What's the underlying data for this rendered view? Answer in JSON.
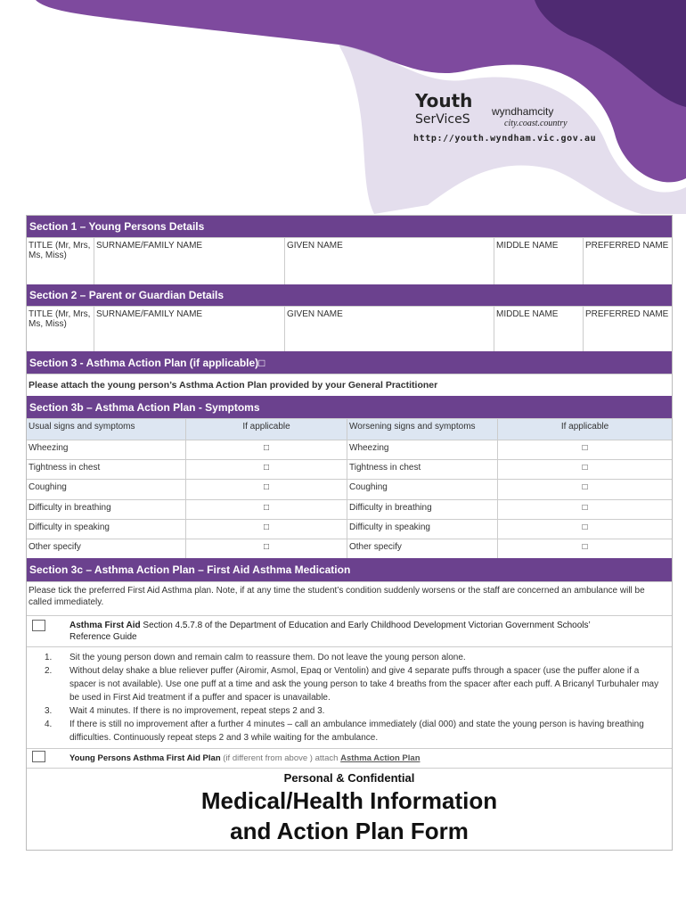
{
  "header": {
    "logo_youth": "Youth",
    "logo_services": "SerViceS",
    "logo_city": "wyndhamcity",
    "logo_tagline": "city.coast.country",
    "url": "http://youth.wyndham.vic.gov.au",
    "accent": "#6b418e"
  },
  "section1": {
    "title": "Section 1 – Young Persons Details",
    "fields": [
      "TITLE (Mr, Mrs, Ms, Miss)",
      "SURNAME/FAMILY NAME",
      "GIVEN NAME",
      "MIDDLE NAME",
      "PREFERRED NAME"
    ]
  },
  "section2": {
    "title": "Section 2 – Parent or Guardian Details",
    "fields": [
      " TITLE (Mr, Mrs, Ms, Miss)",
      "SURNAME/FAMILY NAME",
      "GIVEN NAME",
      "MIDDLE NAME",
      "PREFERRED NAME"
    ]
  },
  "section3": {
    "title": "Section 3 - Asthma Action Plan (if applicable)□",
    "note": "Please attach the young person’s Asthma Action Plan provided by your General Practitioner"
  },
  "section3b": {
    "title": "Section 3b – Asthma Action Plan - Symptoms",
    "headers": [
      "Usual signs and symptoms",
      "If applicable",
      "Worsening signs and symptoms",
      "If applicable"
    ],
    "rows": [
      [
        "Wheezing",
        "□",
        "Wheezing",
        "□"
      ],
      [
        "Tightness in chest",
        "□",
        "Tightness in chest",
        "□"
      ],
      [
        "Coughing",
        "□",
        "Coughing",
        "□"
      ],
      [
        "Difficulty in breathing",
        "□",
        "Difficulty in breathing",
        "□"
      ],
      [
        "Difficulty in speaking",
        "□",
        "Difficulty in speaking",
        "□"
      ],
      [
        "Other specify",
        "□",
        "Other specify",
        "□"
      ]
    ]
  },
  "section3c": {
    "title": "Section 3c – Asthma Action Plan – First Aid Asthma Medication",
    "note": "Please tick the preferred First Aid Asthma plan.  Note, if at any time the student’s condition suddenly worsens or the staff are concerned  an ambulance will be called immediately.",
    "option1_bold": "Asthma First Aid",
    "option1_text": "  Section 4.5.7.8 of the Department of Education and Early Childhood Development Victorian Government Schools’ Reference Guide",
    "steps": [
      {
        "n": "1.",
        "text": "Sit the young person down and remain calm to reassure them. Do not leave the young person alone."
      },
      {
        "n": "2.",
        "text": "Without delay shake a blue reliever puffer (Airomir, Asmol, Epaq or Ventolin) and give 4 separate puffs through a spacer (use the puffer alone if a spacer is not available). Use one puff at a time and ask the young person to take 4 breaths from the spacer after each puff.  A Bricanyl Turbuhaler may be used in First Aid treatment if a puffer and spacer is unavailable."
      },
      {
        "n": "3.",
        "text": "Wait 4 minutes. If there is no improvement, repeat steps 2 and 3."
      },
      {
        "n": "4.",
        "text": "If there is still no improvement after a further 4 minutes – call an ambulance immediately (dial 000) and state the young person is having breathing difficulties. Continuously repeat steps 2 and 3 while waiting for the ambulance."
      }
    ],
    "option2_bold": "Young Persons Asthma First Aid Plan",
    "option2_text": " (if different from above ) attach ",
    "option2_link": "Asthma Action Plan"
  },
  "overlay": {
    "confidential": "Personal & Confidential",
    "title_line1": "Medical/Health Information",
    "title_line2": "and Action Plan Form"
  }
}
